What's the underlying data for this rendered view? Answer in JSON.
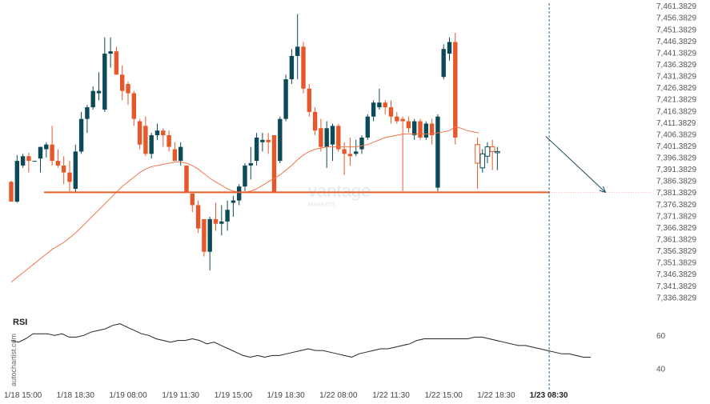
{
  "chart_data": {
    "type": "candlestick",
    "y_ticks": [
      "7,461.3829",
      "7,456.3829",
      "7,451.3829",
      "7,446.3829",
      "7,441.3829",
      "7,436.3829",
      "7,431.3829",
      "7,426.3829",
      "7,421.3829",
      "7,416.3829",
      "7,411.3829",
      "7,406.3829",
      "7,401.3829",
      "7,396.3829",
      "7,391.3829",
      "7,386.3829",
      "7,381.3829",
      "7,376.3829",
      "7,371.3829",
      "7,366.3829",
      "7,361.3829",
      "7,356.3829",
      "7,351.3829",
      "7,346.3829",
      "7,341.3829",
      "7,336.3829"
    ],
    "y_tick_values": [
      7461.3829,
      7456.3829,
      7451.3829,
      7446.3829,
      7441.3829,
      7436.3829,
      7431.3829,
      7426.3829,
      7421.3829,
      7416.3829,
      7411.3829,
      7406.3829,
      7401.3829,
      7396.3829,
      7391.3829,
      7386.3829,
      7381.3829,
      7376.3829,
      7371.3829,
      7366.3829,
      7361.3829,
      7356.3829,
      7351.3829,
      7346.3829,
      7341.3829,
      7336.3829
    ],
    "ylim": [
      7332.9,
      7462.3
    ],
    "x_ticks": [
      {
        "label": "1/18 15:00",
        "index": 2
      },
      {
        "label": "1/18 18:30",
        "index": 11
      },
      {
        "label": "1/19 08:00",
        "index": 20
      },
      {
        "label": "1/19 11:30",
        "index": 29
      },
      {
        "label": "1/19 15:00",
        "index": 38
      },
      {
        "label": "1/19 18:30",
        "index": 47
      },
      {
        "label": "1/22 08:00",
        "index": 56
      },
      {
        "label": "1/22 11:30",
        "index": 65
      },
      {
        "label": "1/22 15:00",
        "index": 74
      },
      {
        "label": "1/22 18:30",
        "index": 83
      },
      {
        "label": "1/23 08:30",
        "index": 92,
        "highlight": true
      }
    ],
    "candles": [
      {
        "o": 7386.0,
        "h": 7386.5,
        "l": 7377.5,
        "c": 7377.5
      },
      {
        "o": 7377.5,
        "h": 7397.5,
        "l": 7377.0,
        "c": 7395.0
      },
      {
        "o": 7393.0,
        "h": 7398.0,
        "l": 7392.0,
        "c": 7397.0
      },
      {
        "o": 7397.0,
        "h": 7398.5,
        "l": 7390.0,
        "c": 7395.0
      },
      {
        "o": 7395.0,
        "h": 7395.0,
        "l": 7395.0,
        "c": 7395.0
      },
      {
        "o": 7396.0,
        "h": 7401.0,
        "l": 7390.0,
        "c": 7401.0
      },
      {
        "o": 7400.0,
        "h": 7403.0,
        "l": 7396.5,
        "c": 7402.0
      },
      {
        "o": 7402.0,
        "h": 7410.0,
        "l": 7393.0,
        "c": 7395.0
      },
      {
        "o": 7395.0,
        "h": 7400.0,
        "l": 7392.0,
        "c": 7393.0
      },
      {
        "o": 7393.0,
        "h": 7397.0,
        "l": 7385.0,
        "c": 7390.0
      },
      {
        "o": 7390.0,
        "h": 7395.0,
        "l": 7382.0,
        "c": 7386.0
      },
      {
        "o": 7383.0,
        "h": 7402.0,
        "l": 7381.5,
        "c": 7399.0
      },
      {
        "o": 7399.0,
        "h": 7416.0,
        "l": 7398.0,
        "c": 7413.0
      },
      {
        "o": 7413.0,
        "h": 7419.0,
        "l": 7407.0,
        "c": 7418.0
      },
      {
        "o": 7418.0,
        "h": 7427.0,
        "l": 7417.0,
        "c": 7425.0
      },
      {
        "o": 7424.0,
        "h": 7433.0,
        "l": 7421.0,
        "c": 7425.0
      },
      {
        "o": 7417.0,
        "h": 7448.0,
        "l": 7416.0,
        "c": 7441.0
      },
      {
        "o": 7441.0,
        "h": 7448.0,
        "l": 7435.0,
        "c": 7442.0
      },
      {
        "o": 7442.0,
        "h": 7444.0,
        "l": 7432.0,
        "c": 7432.0
      },
      {
        "o": 7432.0,
        "h": 7436.0,
        "l": 7421.0,
        "c": 7425.0
      },
      {
        "o": 7428.0,
        "h": 7429.0,
        "l": 7419.0,
        "c": 7424.0
      },
      {
        "o": 7424.0,
        "h": 7425.0,
        "l": 7410.0,
        "c": 7413.0
      },
      {
        "o": 7412.0,
        "h": 7413.0,
        "l": 7400.0,
        "c": 7402.0
      },
      {
        "o": 7410.0,
        "h": 7414.0,
        "l": 7397.0,
        "c": 7398.0
      },
      {
        "o": 7398.0,
        "h": 7407.0,
        "l": 7396.0,
        "c": 7406.0
      },
      {
        "o": 7406.0,
        "h": 7411.0,
        "l": 7404.0,
        "c": 7408.0
      },
      {
        "o": 7408.0,
        "h": 7409.0,
        "l": 7401.0,
        "c": 7406.0
      },
      {
        "o": 7406.0,
        "h": 7408.0,
        "l": 7399.0,
        "c": 7401.0
      },
      {
        "o": 7400.0,
        "h": 7403.0,
        "l": 7395.0,
        "c": 7395.0
      },
      {
        "o": 7395.0,
        "h": 7403.0,
        "l": 7393.0,
        "c": 7401.0
      },
      {
        "o": 7393.0,
        "h": 7393.0,
        "l": 7381.5,
        "c": 7381.5
      },
      {
        "o": 7381.0,
        "h": 7381.0,
        "l": 7373.0,
        "c": 7376.0
      },
      {
        "o": 7376.0,
        "h": 7378.0,
        "l": 7364.0,
        "c": 7366.0
      },
      {
        "o": 7370.0,
        "h": 7370.0,
        "l": 7354.0,
        "c": 7356.0
      },
      {
        "o": 7356.0,
        "h": 7371.0,
        "l": 7348.0,
        "c": 7370.0
      },
      {
        "o": 7370.0,
        "h": 7377.0,
        "l": 7365.0,
        "c": 7368.0
      },
      {
        "o": 7368.0,
        "h": 7376.0,
        "l": 7363.0,
        "c": 7369.0
      },
      {
        "o": 7369.0,
        "h": 7378.0,
        "l": 7365.0,
        "c": 7374.0
      },
      {
        "o": 7377.0,
        "h": 7380.0,
        "l": 7371.0,
        "c": 7378.0
      },
      {
        "o": 7378.0,
        "h": 7385.0,
        "l": 7376.0,
        "c": 7384.0
      },
      {
        "o": 7384.0,
        "h": 7394.0,
        "l": 7382.0,
        "c": 7393.0
      },
      {
        "o": 7393.0,
        "h": 7401.0,
        "l": 7387.0,
        "c": 7394.0
      },
      {
        "o": 7395.0,
        "h": 7407.0,
        "l": 7393.0,
        "c": 7405.0
      },
      {
        "o": 7403.0,
        "h": 7407.0,
        "l": 7399.0,
        "c": 7404.0
      },
      {
        "o": 7404.0,
        "h": 7407.0,
        "l": 7398.0,
        "c": 7403.0
      },
      {
        "o": 7406.0,
        "h": 7406.0,
        "l": 7381.5,
        "c": 7381.5
      },
      {
        "o": 7395.0,
        "h": 7414.0,
        "l": 7394.0,
        "c": 7413.0
      },
      {
        "o": 7413.0,
        "h": 7432.0,
        "l": 7412.0,
        "c": 7430.0
      },
      {
        "o": 7430.0,
        "h": 7443.0,
        "l": 7428.0,
        "c": 7440.0
      },
      {
        "o": 7440.0,
        "h": 7458.0,
        "l": 7430.0,
        "c": 7444.0
      },
      {
        "o": 7444.0,
        "h": 7446.0,
        "l": 7424.0,
        "c": 7426.0
      },
      {
        "o": 7426.0,
        "h": 7428.0,
        "l": 7414.0,
        "c": 7416.0
      },
      {
        "o": 7416.0,
        "h": 7418.0,
        "l": 7406.0,
        "c": 7408.0
      },
      {
        "o": 7409.0,
        "h": 7413.0,
        "l": 7399.0,
        "c": 7401.0
      },
      {
        "o": 7401.0,
        "h": 7412.0,
        "l": 7392.0,
        "c": 7409.0
      },
      {
        "o": 7402.0,
        "h": 7411.0,
        "l": 7395.0,
        "c": 7410.0
      },
      {
        "o": 7410.0,
        "h": 7411.0,
        "l": 7399.0,
        "c": 7400.0
      },
      {
        "o": 7400.0,
        "h": 7403.0,
        "l": 7389.0,
        "c": 7398.0
      },
      {
        "o": 7398.0,
        "h": 7405.0,
        "l": 7393.0,
        "c": 7397.0
      },
      {
        "o": 7398.0,
        "h": 7404.0,
        "l": 7397.0,
        "c": 7399.0
      },
      {
        "o": 7400.0,
        "h": 7406.0,
        "l": 7398.0,
        "c": 7405.0
      },
      {
        "o": 7405.0,
        "h": 7415.0,
        "l": 7404.0,
        "c": 7414.0
      },
      {
        "o": 7414.0,
        "h": 7421.0,
        "l": 7412.0,
        "c": 7420.0
      },
      {
        "o": 7418.0,
        "h": 7426.0,
        "l": 7417.0,
        "c": 7420.0
      },
      {
        "o": 7420.0,
        "h": 7421.0,
        "l": 7415.0,
        "c": 7418.0
      },
      {
        "o": 7418.0,
        "h": 7421.0,
        "l": 7411.0,
        "c": 7414.0
      },
      {
        "o": 7414.0,
        "h": 7416.0,
        "l": 7411.0,
        "c": 7412.0
      },
      {
        "o": 7413.0,
        "h": 7414.0,
        "l": 7382.0,
        "c": 7412.0
      },
      {
        "o": 7412.0,
        "h": 7414.0,
        "l": 7407.0,
        "c": 7409.0
      },
      {
        "o": 7406.0,
        "h": 7413.0,
        "l": 7404.0,
        "c": 7412.0
      },
      {
        "o": 7412.0,
        "h": 7413.0,
        "l": 7404.0,
        "c": 7405.0
      },
      {
        "o": 7405.0,
        "h": 7412.0,
        "l": 7404.0,
        "c": 7411.0
      },
      {
        "o": 7411.0,
        "h": 7413.0,
        "l": 7402.0,
        "c": 7406.0
      },
      {
        "o": 7383.5,
        "h": 7415.0,
        "l": 7382.0,
        "c": 7414.0
      },
      {
        "o": 7431.0,
        "h": 7445.0,
        "l": 7430.0,
        "c": 7443.0
      },
      {
        "o": 7441.0,
        "h": 7448.0,
        "l": 7438.0,
        "c": 7446.0
      },
      {
        "o": 7446.0,
        "h": 7450.0,
        "l": 7402.0,
        "c": 7405.0
      }
    ],
    "projection_candles": [
      {
        "o": 7402.0,
        "h": 7405.0,
        "l": 7383.0,
        "c": 7394.0
      },
      {
        "o": 7392.0,
        "h": 7400.0,
        "l": 7390.0,
        "c": 7398.0
      },
      {
        "o": 7397.0,
        "h": 7403.0,
        "l": 7394.0,
        "c": 7401.0
      },
      {
        "o": 7401.0,
        "h": 7404.0,
        "l": 7391.0,
        "c": 7399.0
      },
      {
        "o": 7399.0,
        "h": 7401.0,
        "l": 7391.0,
        "c": 7399.0
      }
    ],
    "moving_average": [
      7343.0,
      7345.0,
      7347.0,
      7349.0,
      7351.0,
      7353.0,
      7355.0,
      7357.0,
      7358.5,
      7360.0,
      7362.0,
      7364.0,
      7366.5,
      7369.0,
      7371.5,
      7374.0,
      7376.5,
      7379.0,
      7381.5,
      7384.0,
      7386.0,
      7388.0,
      7390.0,
      7391.5,
      7392.5,
      7393.0,
      7393.5,
      7394.0,
      7394.5,
      7394.5,
      7394.0,
      7393.0,
      7391.5,
      7389.5,
      7387.5,
      7386.0,
      7384.5,
      7383.0,
      7382.0,
      7381.5,
      7381.5,
      7382.0,
      7383.0,
      7384.5,
      7386.0,
      7387.5,
      7389.0,
      7391.0,
      7393.0,
      7395.5,
      7397.5,
      7399.0,
      7400.0,
      7400.5,
      7401.0,
      7401.0,
      7401.0,
      7401.0,
      7401.0,
      7401.0,
      7401.5,
      7402.0,
      7403.0,
      7404.0,
      7405.0,
      7405.5,
      7406.0,
      7406.5,
      7406.5,
      7406.5,
      7406.5,
      7406.5,
      7406.5,
      7407.0,
      7407.5,
      7408.0,
      7409.5,
      7409.0,
      7408.0,
      7407.5,
      7407.0
    ],
    "support_level": 7381.5,
    "projection_arrow": {
      "from_index": 91.5,
      "from_value": 7405.5,
      "to_index": 101.7,
      "to_value": 7381.5
    },
    "rsi": {
      "label": "RSI",
      "ticks": [
        60,
        40
      ],
      "ylim": [
        30,
        75
      ],
      "values": [
        57,
        56,
        58,
        61,
        61,
        61,
        60,
        61,
        59,
        59,
        60,
        62,
        63,
        64,
        66,
        67,
        65,
        63,
        61,
        60,
        58,
        57,
        56,
        57,
        57,
        58,
        57,
        55,
        56,
        54,
        52,
        50,
        48,
        47,
        48,
        47,
        48,
        48,
        49,
        50,
        51,
        52,
        51,
        51,
        50,
        49,
        48,
        47,
        49,
        50,
        51,
        52,
        52,
        53,
        54,
        55,
        57,
        58,
        58,
        58,
        58,
        58,
        58,
        58,
        59,
        59,
        58,
        57,
        56,
        55,
        54,
        54,
        53,
        52,
        51,
        50,
        49,
        49,
        48,
        47,
        47
      ]
    },
    "colors": {
      "up": "#0d4a57",
      "down": "#e6582a",
      "ma": "#f0774a",
      "support": "#e85f2e",
      "arrow": "#1e4e5f",
      "rsi": "#222222",
      "vline": "#2f6a88"
    }
  },
  "brand": {
    "side_label": "autochartist.com",
    "watermark": "vantage",
    "watermark_sub": "MARKETS"
  }
}
